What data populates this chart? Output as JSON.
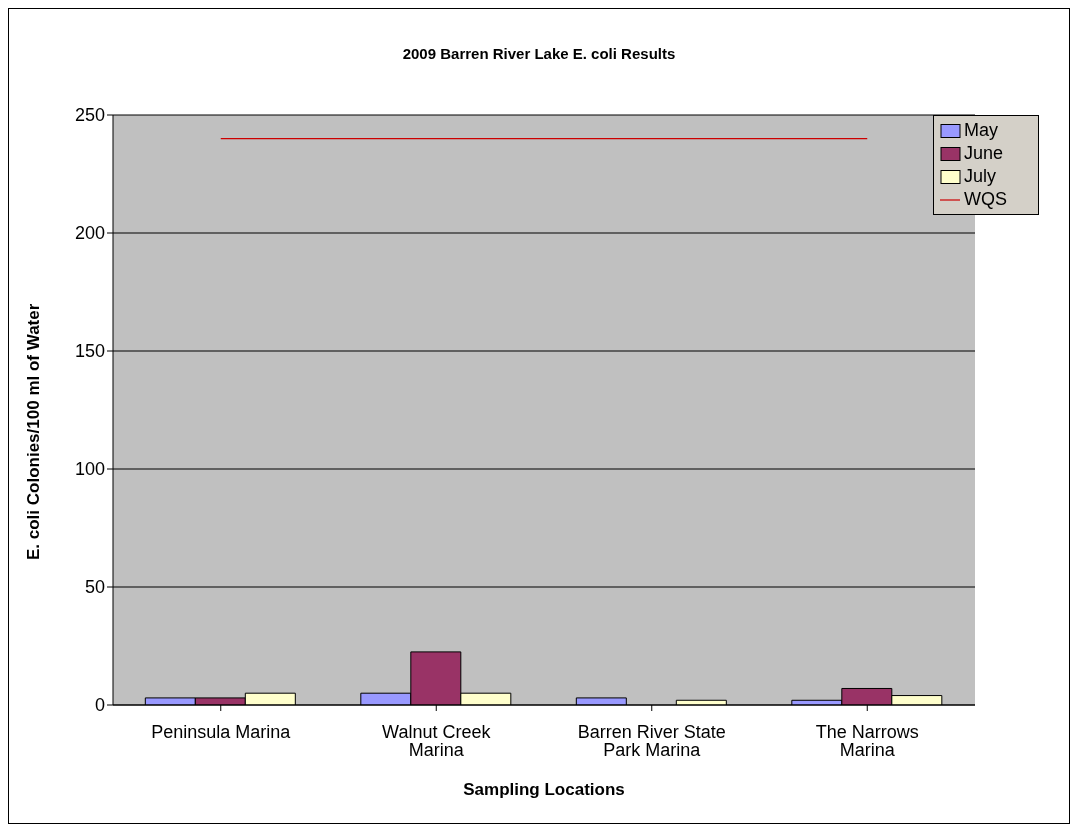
{
  "chart_data": {
    "type": "bar",
    "title": "2009 Barren River Lake E. coli Results",
    "xlabel": "Sampling Locations",
    "ylabel": "E. coli Colonies/100 ml of Water",
    "categories": [
      "Peninsula Marina",
      "Walnut Creek Marina",
      "Barren River State Park Marina",
      "The Narrows Marina"
    ],
    "series": [
      {
        "name": "May",
        "color": "#9999ff",
        "values": [
          3,
          5,
          3,
          2
        ]
      },
      {
        "name": "June",
        "color": "#993366",
        "values": [
          3,
          22.5,
          0,
          7
        ]
      },
      {
        "name": "July",
        "color": "#ffffcc",
        "values": [
          5,
          5,
          2,
          4
        ]
      },
      {
        "name": "WQS",
        "type": "line",
        "color": "#cc0000",
        "values": [
          240,
          240,
          240,
          240
        ]
      }
    ],
    "ylim": [
      0,
      250
    ],
    "yticks": [
      0,
      50,
      100,
      150,
      200,
      250
    ],
    "grid": "y",
    "legend": "top right",
    "marker": "none"
  }
}
